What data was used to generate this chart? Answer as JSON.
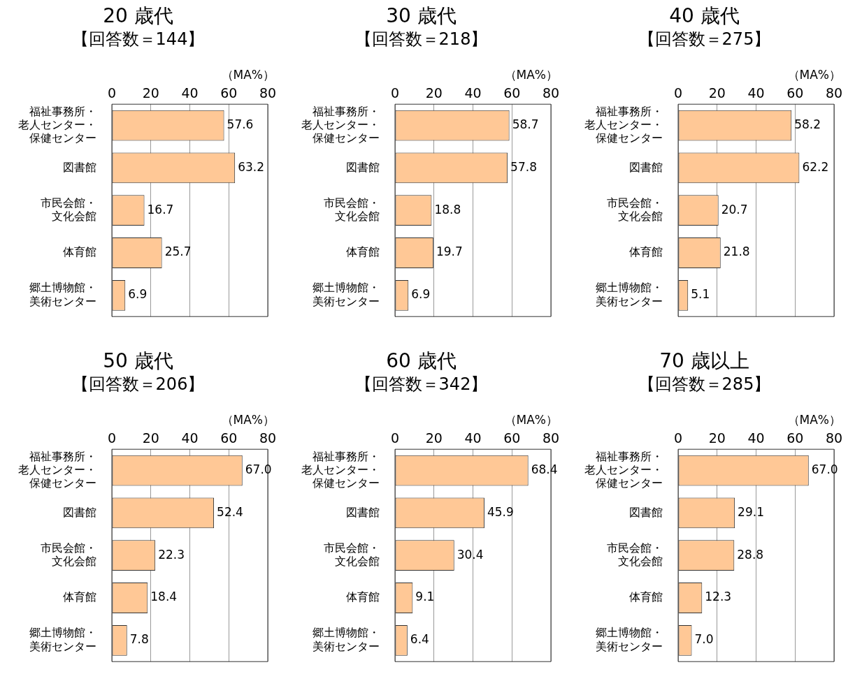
{
  "chart_data": [
    {
      "type": "bar",
      "orientation": "horizontal",
      "title": "20 歳代",
      "subtitle": "【回答数＝144】",
      "annotations": [
        "（MA%）"
      ],
      "categories": [
        "福祉事務所・老人センター・保健センター",
        "図書館",
        "市民会館・文化会館",
        "体育館",
        "郷土博物館・美術センター"
      ],
      "values": [
        57.6,
        63.2,
        16.7,
        25.7,
        6.9
      ],
      "value_labels": [
        "57.6",
        "63.2",
        "16.7",
        "25.7",
        "6.9"
      ],
      "color": "#ffc896",
      "xlim": [
        0,
        80
      ],
      "xticks": [
        0,
        20,
        40,
        60,
        80
      ],
      "grid": "x"
    },
    {
      "type": "bar",
      "orientation": "horizontal",
      "title": "30 歳代",
      "subtitle": "【回答数＝218】",
      "annotations": [
        "（MA%）"
      ],
      "categories": [
        "福祉事務所・老人センター・保健センター",
        "図書館",
        "市民会館・文化会館",
        "体育館",
        "郷土博物館・美術センター"
      ],
      "values": [
        58.7,
        57.8,
        18.8,
        19.7,
        6.9
      ],
      "value_labels": [
        "58.7",
        "57.8",
        "18.8",
        "19.7",
        "6.9"
      ],
      "color": "#ffc896",
      "xlim": [
        0,
        80
      ],
      "xticks": [
        0,
        20,
        40,
        60,
        80
      ],
      "grid": "x"
    },
    {
      "type": "bar",
      "orientation": "horizontal",
      "title": "40 歳代",
      "subtitle": "【回答数＝275】",
      "annotations": [
        "（MA%）"
      ],
      "categories": [
        "福祉事務所・老人センター・保健センター",
        "図書館",
        "市民会館・文化会館",
        "体育館",
        "郷土博物館・美術センター"
      ],
      "values": [
        58.2,
        62.2,
        20.7,
        21.8,
        5.1
      ],
      "value_labels": [
        "58.2",
        "62.2",
        "20.7",
        "21.8",
        "5.1"
      ],
      "color": "#ffc896",
      "xlim": [
        0,
        80
      ],
      "xticks": [
        0,
        20,
        40,
        60,
        80
      ],
      "grid": "x"
    },
    {
      "type": "bar",
      "orientation": "horizontal",
      "title": "50 歳代",
      "subtitle": "【回答数＝206】",
      "annotations": [
        "（MA%）"
      ],
      "categories": [
        "福祉事務所・老人センター・保健センター",
        "図書館",
        "市民会館・文化会館",
        "体育館",
        "郷土博物館・美術センター"
      ],
      "values": [
        67.0,
        52.4,
        22.3,
        18.4,
        7.8
      ],
      "value_labels": [
        "67.0",
        "52.4",
        "22.3",
        "18.4",
        "7.8"
      ],
      "color": "#ffc896",
      "xlim": [
        0,
        80
      ],
      "xticks": [
        0,
        20,
        40,
        60,
        80
      ],
      "grid": "x"
    },
    {
      "type": "bar",
      "orientation": "horizontal",
      "title": "60 歳代",
      "subtitle": "【回答数＝342】",
      "annotations": [
        "（MA%）"
      ],
      "categories": [
        "福祉事務所・老人センター・保健センター",
        "図書館",
        "市民会館・文化会館",
        "体育館",
        "郷土博物館・美術センター"
      ],
      "values": [
        68.4,
        45.9,
        30.4,
        9.1,
        6.4
      ],
      "value_labels": [
        "68.4",
        "45.9",
        "30.4",
        "9.1",
        "6.4"
      ],
      "color": "#ffc896",
      "xlim": [
        0,
        80
      ],
      "xticks": [
        0,
        20,
        40,
        60,
        80
      ],
      "grid": "x"
    },
    {
      "type": "bar",
      "orientation": "horizontal",
      "title": "70 歳以上",
      "subtitle": "【回答数＝285】",
      "annotations": [
        "（MA%）"
      ],
      "categories": [
        "福祉事務所・老人センター・保健センター",
        "図書館",
        "市民会館・文化会館",
        "体育館",
        "郷土博物館・美術センター"
      ],
      "values": [
        67.0,
        29.1,
        28.8,
        12.3,
        7.0
      ],
      "value_labels": [
        "67.0",
        "29.1",
        "28.8",
        "12.3",
        "7.0"
      ],
      "color": "#ffc896",
      "xlim": [
        0,
        80
      ],
      "xticks": [
        0,
        20,
        40,
        60,
        80
      ],
      "grid": "x"
    }
  ]
}
